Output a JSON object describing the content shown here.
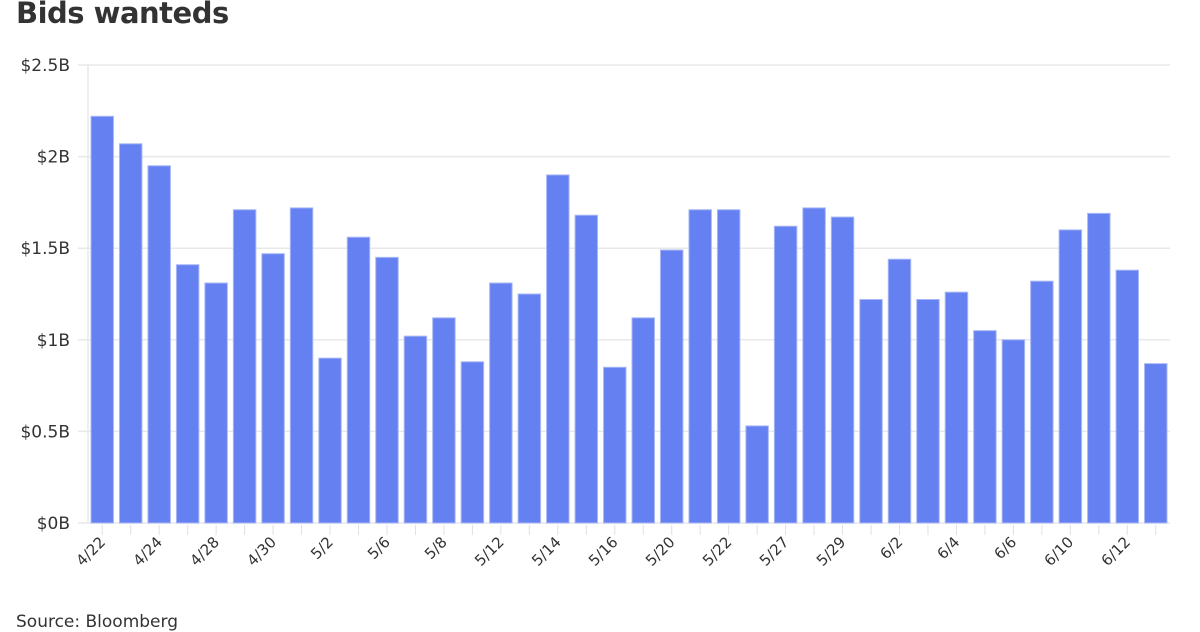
{
  "chart_data": {
    "type": "bar",
    "title": "Bids wanteds",
    "source": "Source: Bloomberg",
    "xlabel": "",
    "ylabel": "",
    "ylim": [
      0,
      2.5
    ],
    "y_ticks": [
      0,
      0.5,
      1,
      1.5,
      2,
      2.5
    ],
    "y_tick_labels": [
      "$0B",
      "$0.5B",
      "$1B",
      "$1.5B",
      "$2B",
      "$2.5B"
    ],
    "grid": true,
    "bar_color": "#6580f0",
    "categories": [
      "4/22",
      "",
      "4/24",
      "",
      "4/28",
      "",
      "4/30",
      "",
      "5/2",
      "",
      "5/6",
      "",
      "5/8",
      "",
      "5/12",
      "",
      "5/14",
      "",
      "5/16",
      "",
      "5/20",
      "",
      "5/22",
      "",
      "5/27",
      "",
      "5/29",
      "",
      "6/2",
      "",
      "6/4",
      "",
      "6/6",
      "",
      "6/10",
      "",
      "6/12",
      ""
    ],
    "values": [
      2.22,
      2.07,
      1.95,
      1.41,
      1.31,
      1.71,
      1.47,
      1.72,
      0.9,
      1.56,
      1.45,
      1.02,
      1.12,
      0.88,
      1.31,
      1.25,
      1.9,
      1.68,
      0.85,
      1.12,
      1.49,
      1.71,
      1.71,
      0.53,
      1.62,
      1.72,
      1.67,
      1.22,
      1.44,
      1.22,
      1.26,
      1.05,
      1.0,
      1.32,
      1.6,
      1.69,
      1.38,
      0.87
    ]
  }
}
